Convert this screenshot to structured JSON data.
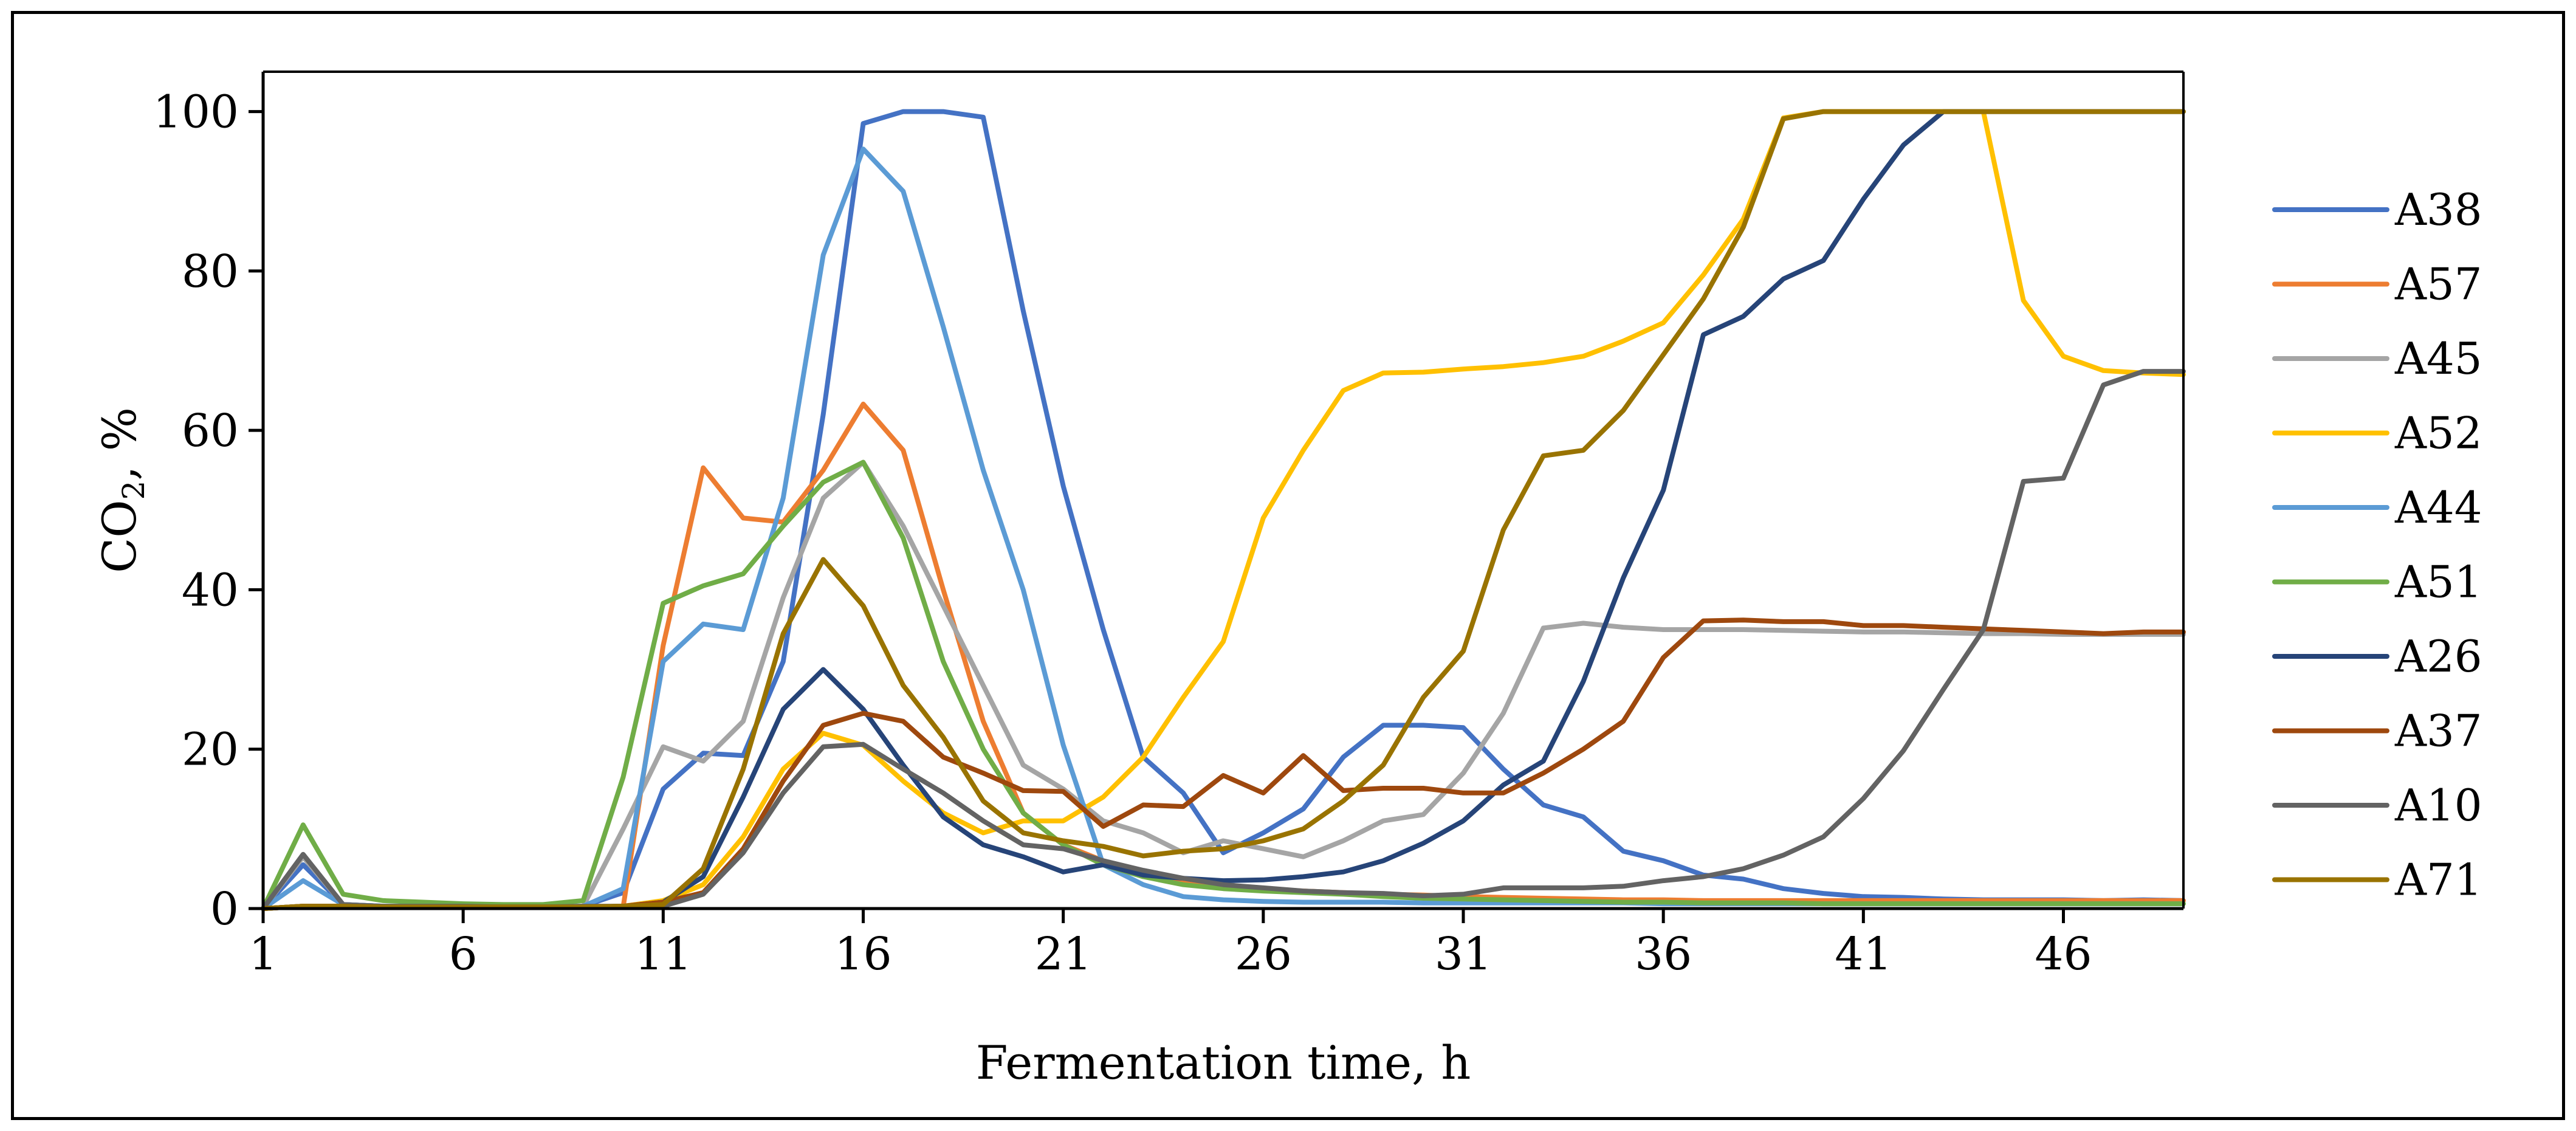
{
  "chart_data": {
    "type": "line",
    "title": "",
    "xlabel": "Fermentation time, h",
    "ylabel": {
      "main": "CO",
      "sub": "2",
      "suffix": ", %"
    },
    "xlim": [
      1,
      49
    ],
    "ylim": [
      0,
      105
    ],
    "x_ticks": [
      1,
      6,
      11,
      16,
      21,
      26,
      31,
      36,
      41,
      46
    ],
    "y_ticks": [
      0,
      20,
      40,
      60,
      80,
      100
    ],
    "grid": false,
    "legend_position": "right",
    "x": [
      1,
      2,
      3,
      4,
      5,
      6,
      7,
      8,
      9,
      10,
      11,
      12,
      13,
      14,
      15,
      16,
      17,
      18,
      19,
      20,
      21,
      22,
      23,
      24,
      25,
      26,
      27,
      28,
      29,
      30,
      31,
      32,
      33,
      34,
      35,
      36,
      37,
      38,
      39,
      40,
      41,
      42,
      43,
      44,
      45,
      46,
      47,
      48,
      49
    ],
    "series": [
      {
        "name": "A38",
        "color": "#4472C4",
        "values": [
          0,
          5.5,
          0.5,
          0.3,
          0.3,
          0.3,
          0.2,
          0.2,
          0.3,
          2,
          15,
          19.5,
          19.2,
          31,
          62,
          98.5,
          100,
          100,
          99.3,
          75,
          53,
          35,
          19,
          14.5,
          7,
          9.5,
          12.5,
          19,
          23,
          23,
          22.7,
          17.5,
          13,
          11.5,
          7.2,
          6,
          4.2,
          3.7,
          2.5,
          1.9,
          1.5,
          1.4,
          1.2,
          1.1,
          1.1,
          1.1,
          1,
          1.1,
          1
        ]
      },
      {
        "name": "A57",
        "color": "#ED7D31",
        "values": [
          0,
          0.3,
          0.3,
          0.2,
          0.2,
          0.2,
          0.2,
          0.2,
          0.2,
          0.2,
          33,
          55.3,
          49,
          48.5,
          55,
          63.3,
          57.5,
          40,
          23.5,
          12,
          8,
          6,
          4.5,
          3.5,
          3,
          2.5,
          2.2,
          2,
          1.8,
          1.7,
          1.5,
          1.4,
          1.3,
          1.2,
          1.1,
          1.1,
          1,
          1,
          1,
          1,
          1,
          1,
          1,
          1,
          1,
          1,
          1,
          1,
          1
        ]
      },
      {
        "name": "A45",
        "color": "#A5A5A5",
        "values": [
          0,
          6.5,
          0.5,
          0.3,
          0.3,
          0.3,
          0.2,
          0.2,
          0.3,
          10,
          20.3,
          18.5,
          23.5,
          39,
          51.5,
          56,
          48,
          38,
          28,
          18,
          15,
          11,
          9.5,
          7,
          8.5,
          7.5,
          6.5,
          8.5,
          11,
          11.8,
          17,
          24.5,
          35.2,
          35.8,
          35.3,
          35,
          35,
          35,
          34.9,
          34.8,
          34.7,
          34.7,
          34.6,
          34.5,
          34.5,
          34.4,
          34.4,
          34.4,
          34.4
        ]
      },
      {
        "name": "A52",
        "color": "#FFC000",
        "values": [
          0,
          0.3,
          0.3,
          0.2,
          0.2,
          0.2,
          0.2,
          0.2,
          0.2,
          0.3,
          1,
          3,
          9,
          17.5,
          22,
          20.5,
          16,
          12,
          9.5,
          11,
          11,
          14,
          19,
          26.5,
          33.5,
          49,
          57.5,
          65,
          67.2,
          67.3,
          67.7,
          68,
          68.5,
          69.3,
          71.2,
          73.5,
          79.5,
          86.5,
          99.2,
          100,
          100,
          100,
          100,
          100,
          76.3,
          69.3,
          67.5,
          67.2,
          67
        ]
      },
      {
        "name": "A44",
        "color": "#5B9BD5",
        "values": [
          0,
          3.5,
          0.5,
          0.3,
          0.3,
          0.3,
          0.2,
          0.2,
          0.3,
          2.5,
          31,
          35.7,
          35,
          51.5,
          82,
          95.3,
          90,
          73,
          55,
          40,
          20.5,
          5.5,
          3,
          1.5,
          1.1,
          0.9,
          0.8,
          0.8,
          0.8,
          0.7,
          0.7,
          0.7,
          0.7,
          0.7,
          0.7,
          0.6,
          0.6,
          0.6,
          0.6,
          0.6,
          0.6,
          0.6,
          0.6,
          0.6,
          0.6,
          0.6,
          0.6,
          0.6,
          0.6
        ]
      },
      {
        "name": "A51",
        "color": "#70AD47",
        "values": [
          0,
          10.5,
          1.8,
          1,
          0.8,
          0.6,
          0.5,
          0.5,
          1,
          16.5,
          38.3,
          40.5,
          42,
          48,
          53.5,
          56,
          46.5,
          31,
          20,
          12,
          8,
          5.5,
          4,
          3,
          2.5,
          2.2,
          2,
          1.8,
          1.5,
          1.3,
          1.2,
          1.1,
          1,
          0.9,
          0.8,
          0.8,
          0.7,
          0.7,
          0.7,
          0.6,
          0.6,
          0.6,
          0.6,
          0.6,
          0.6,
          0.6,
          0.6,
          0.6,
          0.6
        ]
      },
      {
        "name": "A26",
        "color": "#264478",
        "values": [
          0,
          0.3,
          0.3,
          0.2,
          0.2,
          0.2,
          0.2,
          0.2,
          0.2,
          0.3,
          0.8,
          4,
          14,
          25,
          30,
          25,
          18,
          11.5,
          8,
          6.5,
          4.6,
          5.5,
          4.2,
          3.8,
          3.5,
          3.6,
          4,
          4.6,
          6,
          8.2,
          11,
          15.5,
          18.5,
          28.5,
          41.5,
          52.5,
          72,
          74.3,
          79,
          81.3,
          89,
          95.8,
          100,
          100,
          100,
          100,
          100,
          100,
          100
        ]
      },
      {
        "name": "A37",
        "color": "#9E480E",
        "values": [
          0,
          0.3,
          0.3,
          0.2,
          0.2,
          0.2,
          0.2,
          0.2,
          0.2,
          0.3,
          0.8,
          2,
          7.5,
          16,
          23,
          24.5,
          23.5,
          19,
          17,
          14.8,
          14.7,
          10.3,
          13,
          12.8,
          16.7,
          14.5,
          19.2,
          14.8,
          15.1,
          15.1,
          14.5,
          14.5,
          17,
          20,
          23.5,
          31.5,
          36.1,
          36.2,
          36,
          36,
          35.5,
          35.5,
          35.3,
          35.1,
          34.9,
          34.7,
          34.5,
          34.7,
          34.7
        ]
      },
      {
        "name": "A10",
        "color": "#636363",
        "values": [
          0,
          6.8,
          0.5,
          0.3,
          0.3,
          0.3,
          0.2,
          0.2,
          0.3,
          0.3,
          0.3,
          1.8,
          7,
          14.5,
          20.3,
          20.6,
          17.5,
          14.5,
          11,
          8,
          7.5,
          6,
          4.8,
          3.8,
          3,
          2.6,
          2.2,
          2,
          1.9,
          1.6,
          1.8,
          2.6,
          2.6,
          2.6,
          2.8,
          3.5,
          4,
          5,
          6.7,
          9,
          13.8,
          19.8,
          27.5,
          35,
          53.6,
          54,
          65.7,
          67.4,
          67.4
        ]
      },
      {
        "name": "A71",
        "color": "#997300",
        "values": [
          0,
          0.3,
          0.3,
          0.2,
          0.2,
          0.2,
          0.2,
          0.2,
          0.2,
          0.3,
          0.5,
          5,
          17.5,
          34.5,
          43.8,
          38,
          28,
          21.5,
          13.5,
          9.5,
          8.5,
          7.8,
          6.6,
          7.2,
          7.5,
          8.5,
          10,
          13.5,
          18,
          26.5,
          32.3,
          47.5,
          56.8,
          57.5,
          62.5,
          69.5,
          76.5,
          85.5,
          99.1,
          100,
          100,
          100,
          100,
          100,
          100,
          100,
          100,
          100,
          100
        ]
      }
    ]
  }
}
